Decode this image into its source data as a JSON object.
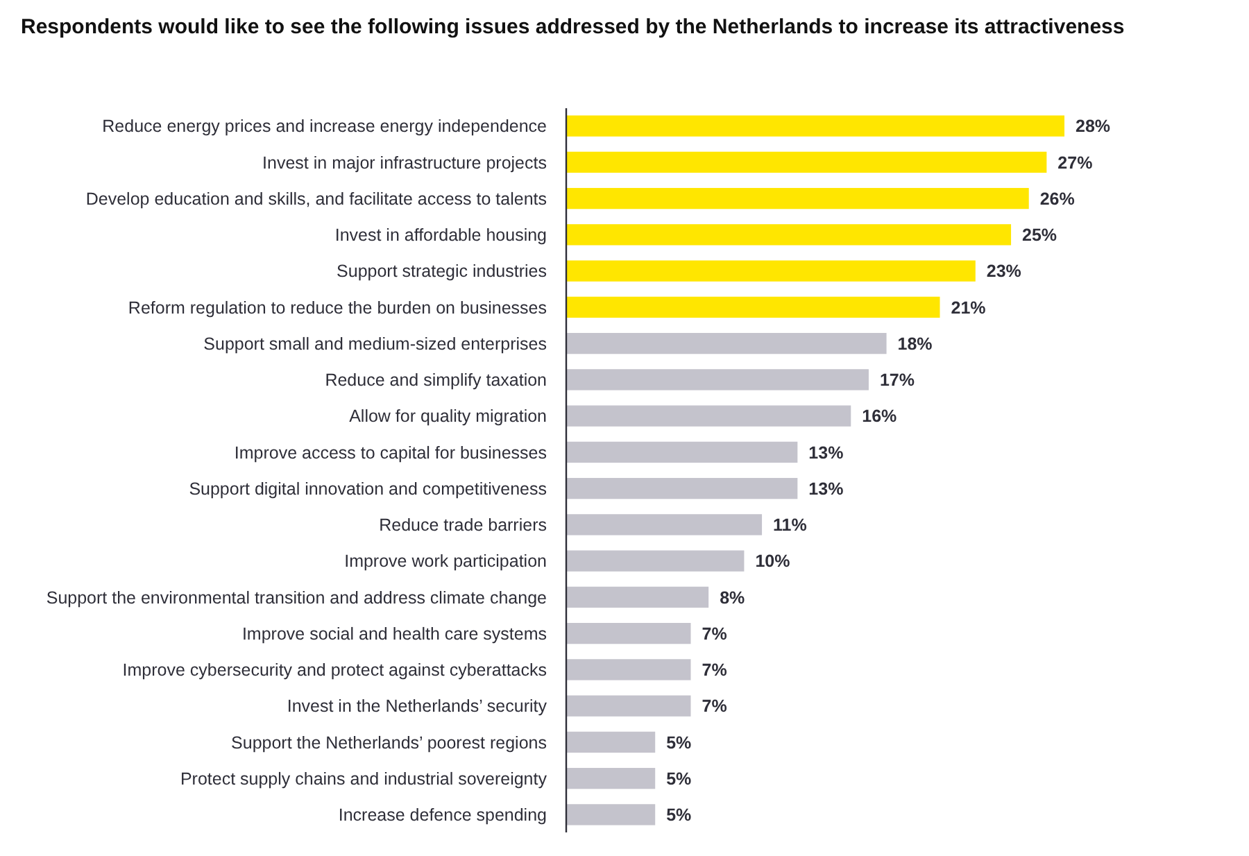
{
  "chart_data": {
    "type": "bar",
    "orientation": "horizontal",
    "title": "Respondents would like to see the following issues addressed by the Netherlands to increase its attractiveness",
    "categories": [
      "Reduce energy prices and increase energy independence",
      "Invest in major infrastructure projects",
      "Develop education and skills, and facilitate access to talents",
      "Invest in affordable housing",
      "Support strategic industries",
      "Reform regulation to reduce the burden on businesses",
      "Support small and medium-sized enterprises",
      "Reduce and simplify taxation",
      "Allow for quality migration",
      "Improve access to capital for businesses",
      "Support digital innovation and competitiveness",
      "Reduce trade barriers",
      "Improve work participation",
      "Support the environmental transition and address climate change",
      "Improve social and health care systems",
      "Improve cybersecurity and protect against cyberattacks",
      "Invest in the Netherlands’ security",
      "Support the Netherlands’ poorest regions",
      "Protect supply chains and industrial sovereignty",
      "Increase defence spending"
    ],
    "values": [
      28,
      27,
      26,
      25,
      23,
      21,
      18,
      17,
      16,
      13,
      13,
      11,
      10,
      8,
      7,
      7,
      7,
      5,
      5,
      5
    ],
    "value_labels": [
      "28%",
      "27%",
      "26%",
      "25%",
      "23%",
      "21%",
      "18%",
      "17%",
      "16%",
      "13%",
      "13%",
      "11%",
      "10%",
      "8%",
      "7%",
      "7%",
      "7%",
      "5%",
      "5%",
      "5%"
    ],
    "colors": [
      "#ffe600",
      "#ffe600",
      "#ffe600",
      "#ffe600",
      "#ffe600",
      "#ffe600",
      "#c4c3cc",
      "#c4c3cc",
      "#c4c3cc",
      "#c4c3cc",
      "#c4c3cc",
      "#c4c3cc",
      "#c4c3cc",
      "#c4c3cc",
      "#c4c3cc",
      "#c4c3cc",
      "#c4c3cc",
      "#c4c3cc",
      "#c4c3cc",
      "#c4c3cc"
    ]
  }
}
